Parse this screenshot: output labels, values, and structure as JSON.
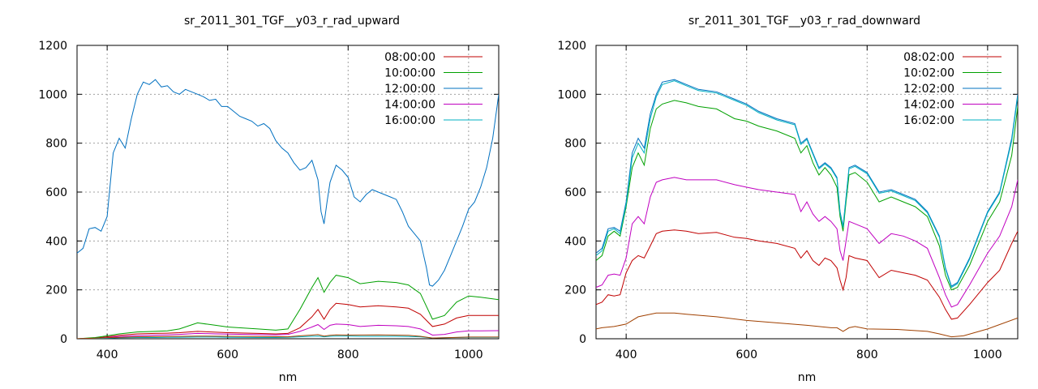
{
  "chart_data": [
    {
      "type": "line",
      "title": "sr_2011_301_TGF__y03_r_rad_upward",
      "xlabel": "nm",
      "ylabel": "",
      "xlim": [
        350,
        1050
      ],
      "ylim": [
        0,
        1200
      ],
      "xticks": [
        400,
        600,
        800,
        1000
      ],
      "yticks": [
        0,
        200,
        400,
        600,
        800,
        1000,
        1200
      ],
      "grid": true,
      "legend_position": "top-right",
      "series": [
        {
          "name": "08:00:00",
          "color": "#c00000",
          "x": [
            350,
            380,
            400,
            420,
            450,
            480,
            500,
            520,
            550,
            580,
            600,
            650,
            680,
            700,
            720,
            740,
            750,
            760,
            770,
            780,
            800,
            820,
            850,
            880,
            900,
            920,
            940,
            960,
            980,
            1000,
            1020,
            1050
          ],
          "y": [
            0,
            3,
            8,
            14,
            20,
            22,
            23,
            25,
            30,
            27,
            25,
            22,
            20,
            22,
            45,
            90,
            120,
            80,
            120,
            145,
            140,
            130,
            135,
            130,
            125,
            100,
            50,
            60,
            85,
            95,
            95,
            95
          ]
        },
        {
          "name": "10:00:00",
          "color": "#00a000",
          "x": [
            350,
            380,
            400,
            420,
            450,
            480,
            500,
            520,
            550,
            580,
            600,
            650,
            680,
            700,
            720,
            740,
            750,
            760,
            770,
            780,
            800,
            820,
            850,
            880,
            900,
            920,
            940,
            960,
            980,
            1000,
            1020,
            1050
          ],
          "y": [
            0,
            5,
            12,
            20,
            28,
            30,
            32,
            40,
            65,
            55,
            48,
            40,
            35,
            40,
            120,
            210,
            250,
            190,
            230,
            260,
            250,
            225,
            235,
            230,
            220,
            185,
            80,
            95,
            150,
            175,
            170,
            160
          ]
        },
        {
          "name": "12:00:00",
          "color": "#0070c0",
          "x": [
            350,
            360,
            370,
            380,
            390,
            400,
            410,
            420,
            430,
            440,
            450,
            460,
            470,
            480,
            490,
            500,
            510,
            520,
            530,
            540,
            550,
            560,
            570,
            580,
            590,
            600,
            610,
            620,
            630,
            640,
            650,
            660,
            670,
            680,
            690,
            700,
            710,
            720,
            730,
            740,
            750,
            755,
            760,
            765,
            770,
            780,
            790,
            800,
            810,
            820,
            830,
            840,
            850,
            860,
            870,
            880,
            890,
            900,
            910,
            920,
            930,
            935,
            940,
            950,
            960,
            970,
            980,
            990,
            1000,
            1010,
            1020,
            1030,
            1040,
            1050
          ],
          "y": [
            350,
            370,
            450,
            455,
            440,
            500,
            760,
            820,
            780,
            900,
            1000,
            1050,
            1040,
            1060,
            1030,
            1035,
            1010,
            1000,
            1020,
            1010,
            1000,
            990,
            975,
            980,
            950,
            950,
            930,
            910,
            900,
            890,
            870,
            880,
            860,
            810,
            780,
            760,
            720,
            690,
            700,
            730,
            650,
            520,
            470,
            560,
            640,
            710,
            690,
            660,
            580,
            560,
            590,
            610,
            600,
            590,
            580,
            570,
            520,
            460,
            430,
            400,
            290,
            220,
            215,
            240,
            280,
            340,
            400,
            460,
            530,
            560,
            620,
            700,
            820,
            1000
          ]
        },
        {
          "name": "14:00:00",
          "color": "#c000c0",
          "x": [
            350,
            380,
            400,
            420,
            450,
            480,
            500,
            520,
            550,
            580,
            600,
            650,
            680,
            700,
            720,
            740,
            750,
            760,
            770,
            780,
            800,
            820,
            850,
            880,
            900,
            920,
            940,
            960,
            980,
            1000,
            1020,
            1050
          ],
          "y": [
            0,
            2,
            5,
            9,
            13,
            15,
            16,
            18,
            22,
            20,
            19,
            17,
            16,
            18,
            30,
            48,
            58,
            38,
            55,
            60,
            58,
            50,
            55,
            53,
            50,
            40,
            15,
            18,
            28,
            32,
            32,
            33
          ]
        },
        {
          "name": "16:00:00",
          "color": "#00b0c0",
          "x": [
            350,
            380,
            400,
            420,
            450,
            480,
            500,
            520,
            550,
            580,
            600,
            650,
            680,
            700,
            720,
            740,
            750,
            760,
            770,
            780,
            800,
            820,
            850,
            880,
            900,
            920,
            940,
            960,
            980,
            1000,
            1020,
            1050
          ],
          "y": [
            0,
            1,
            2,
            4,
            5,
            5,
            6,
            6,
            7,
            7,
            6,
            5,
            5,
            6,
            8,
            10,
            11,
            8,
            10,
            11,
            11,
            10,
            10,
            10,
            9,
            8,
            3,
            4,
            5,
            6,
            6,
            6
          ]
        },
        {
          "name": "",
          "color": "#a04000",
          "x": [
            350,
            400,
            450,
            500,
            550,
            600,
            650,
            700,
            720,
            740,
            750,
            760,
            770,
            780,
            800,
            850,
            900,
            920,
            940,
            960,
            1000,
            1050
          ],
          "y": [
            0,
            4,
            8,
            9,
            11,
            10,
            9,
            8,
            12,
            15,
            17,
            11,
            14,
            16,
            15,
            16,
            14,
            10,
            3,
            4,
            7,
            7
          ]
        }
      ]
    },
    {
      "type": "line",
      "title": "sr_2011_301_TGF__y03_r_rad_downward",
      "xlabel": "nm",
      "ylabel": "",
      "xlim": [
        350,
        1050
      ],
      "ylim": [
        0,
        1200
      ],
      "xticks": [
        400,
        600,
        800,
        1000
      ],
      "yticks": [
        0,
        200,
        400,
        600,
        800,
        1000,
        1200
      ],
      "grid": true,
      "legend_position": "top-right",
      "series": [
        {
          "name": "08:02:00",
          "color": "#c00000",
          "x": [
            350,
            360,
            370,
            380,
            390,
            400,
            410,
            420,
            430,
            440,
            450,
            460,
            480,
            500,
            520,
            550,
            580,
            600,
            620,
            650,
            680,
            690,
            700,
            710,
            720,
            730,
            740,
            750,
            755,
            760,
            765,
            770,
            780,
            800,
            820,
            840,
            860,
            880,
            900,
            920,
            930,
            940,
            950,
            970,
            1000,
            1020,
            1040,
            1050
          ],
          "y": [
            140,
            150,
            180,
            175,
            180,
            270,
            320,
            340,
            330,
            380,
            430,
            440,
            445,
            440,
            430,
            435,
            415,
            410,
            400,
            390,
            370,
            330,
            360,
            320,
            300,
            330,
            320,
            290,
            240,
            200,
            250,
            340,
            330,
            320,
            250,
            280,
            270,
            260,
            240,
            170,
            120,
            80,
            85,
            140,
            230,
            280,
            390,
            440
          ]
        },
        {
          "name": "10:02:00",
          "color": "#00a000",
          "x": [
            350,
            360,
            370,
            380,
            390,
            400,
            410,
            420,
            430,
            440,
            450,
            460,
            480,
            500,
            520,
            550,
            580,
            600,
            620,
            650,
            680,
            690,
            700,
            710,
            720,
            730,
            740,
            750,
            755,
            760,
            765,
            770,
            780,
            800,
            820,
            840,
            860,
            880,
            900,
            920,
            930,
            940,
            950,
            970,
            1000,
            1020,
            1040,
            1050
          ],
          "y": [
            320,
            340,
            420,
            440,
            420,
            540,
            700,
            760,
            710,
            860,
            940,
            960,
            975,
            965,
            950,
            940,
            900,
            890,
            870,
            850,
            820,
            760,
            790,
            720,
            670,
            700,
            670,
            620,
            500,
            440,
            560,
            670,
            680,
            640,
            560,
            580,
            560,
            540,
            500,
            380,
            260,
            200,
            210,
            300,
            480,
            560,
            750,
            950
          ]
        },
        {
          "name": "12:02:00",
          "color": "#0070c0",
          "x": [
            350,
            360,
            370,
            380,
            390,
            400,
            410,
            420,
            430,
            440,
            450,
            460,
            480,
            500,
            520,
            550,
            580,
            600,
            620,
            650,
            680,
            690,
            700,
            710,
            720,
            730,
            740,
            750,
            755,
            760,
            765,
            770,
            780,
            800,
            820,
            840,
            860,
            880,
            900,
            920,
            930,
            940,
            950,
            970,
            1000,
            1020,
            1040,
            1050
          ],
          "y": [
            350,
            370,
            450,
            455,
            440,
            560,
            760,
            820,
            780,
            920,
            1000,
            1050,
            1060,
            1040,
            1020,
            1010,
            980,
            960,
            930,
            900,
            880,
            800,
            820,
            760,
            700,
            720,
            700,
            660,
            520,
            460,
            580,
            700,
            710,
            680,
            600,
            610,
            590,
            570,
            520,
            420,
            290,
            215,
            230,
            330,
            520,
            600,
            820,
            1000
          ]
        },
        {
          "name": "14:02:00",
          "color": "#c000c0",
          "x": [
            350,
            360,
            370,
            380,
            390,
            400,
            410,
            420,
            430,
            440,
            450,
            460,
            480,
            500,
            520,
            550,
            580,
            600,
            620,
            650,
            680,
            690,
            700,
            710,
            720,
            730,
            740,
            750,
            755,
            760,
            765,
            770,
            780,
            800,
            820,
            840,
            860,
            880,
            900,
            920,
            930,
            940,
            950,
            970,
            1000,
            1020,
            1040,
            1050
          ],
          "y": [
            210,
            220,
            260,
            265,
            260,
            330,
            470,
            500,
            470,
            580,
            640,
            650,
            660,
            650,
            650,
            650,
            630,
            620,
            610,
            600,
            590,
            520,
            560,
            510,
            480,
            500,
            480,
            450,
            360,
            320,
            400,
            480,
            470,
            450,
            390,
            430,
            420,
            400,
            370,
            250,
            180,
            130,
            140,
            220,
            350,
            420,
            540,
            650
          ]
        },
        {
          "name": "16:02:00",
          "color": "#00b0c0",
          "x": [
            350,
            360,
            370,
            380,
            390,
            400,
            410,
            420,
            430,
            440,
            450,
            460,
            480,
            500,
            520,
            550,
            580,
            600,
            620,
            650,
            680,
            690,
            700,
            710,
            720,
            730,
            740,
            750,
            755,
            760,
            765,
            770,
            780,
            800,
            820,
            840,
            860,
            880,
            900,
            920,
            930,
            940,
            950,
            970,
            1000,
            1020,
            1040,
            1050
          ],
          "y": [
            340,
            360,
            440,
            450,
            430,
            550,
            740,
            800,
            760,
            900,
            990,
            1040,
            1055,
            1035,
            1015,
            1005,
            975,
            955,
            925,
            895,
            875,
            795,
            815,
            755,
            695,
            715,
            695,
            655,
            515,
            455,
            575,
            695,
            705,
            675,
            595,
            605,
            585,
            565,
            515,
            415,
            285,
            210,
            225,
            325,
            515,
            595,
            810,
            990
          ]
        },
        {
          "name": "",
          "color": "#a04000",
          "x": [
            350,
            360,
            380,
            400,
            420,
            450,
            480,
            500,
            550,
            600,
            650,
            700,
            720,
            740,
            750,
            760,
            770,
            780,
            800,
            850,
            900,
            920,
            940,
            960,
            1000,
            1050
          ],
          "y": [
            40,
            45,
            50,
            60,
            90,
            105,
            105,
            100,
            90,
            75,
            65,
            55,
            50,
            45,
            45,
            30,
            45,
            50,
            40,
            38,
            30,
            20,
            8,
            12,
            40,
            85
          ]
        }
      ]
    }
  ]
}
